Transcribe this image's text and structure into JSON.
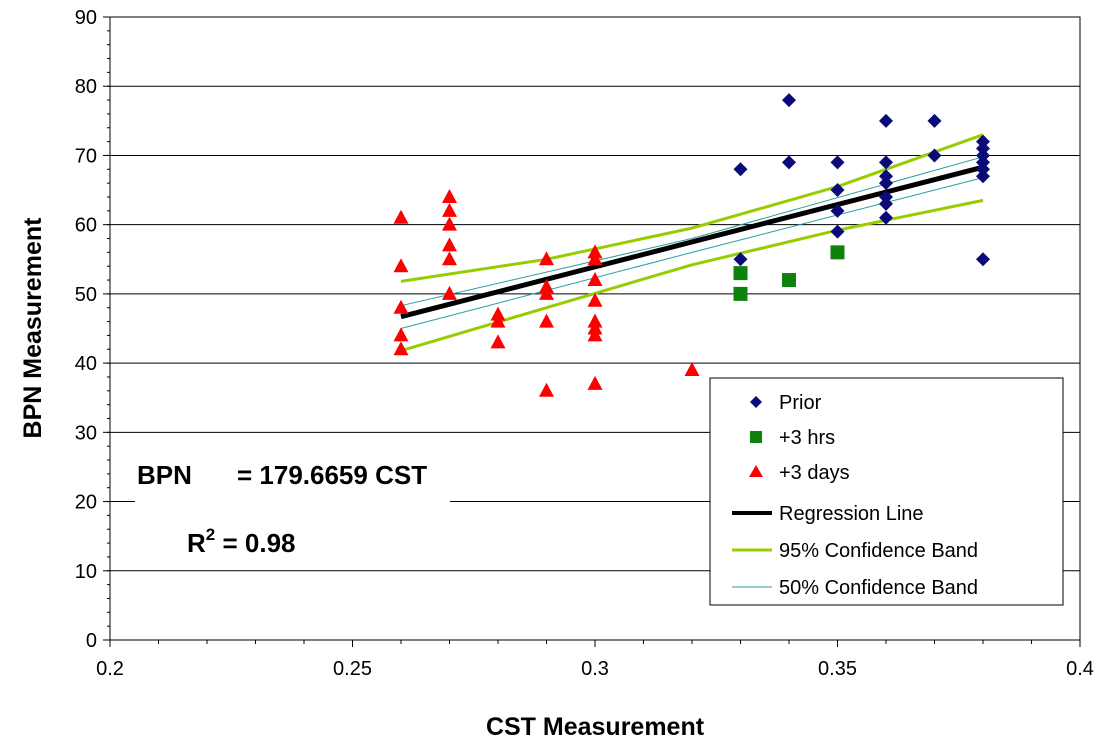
{
  "chart_data": {
    "type": "scatter",
    "xlabel": "CST Measurement",
    "ylabel": "BPN Measurement",
    "xlim": [
      0.2,
      0.4
    ],
    "ylim": [
      0,
      90
    ],
    "x_ticks": [
      "0.2",
      "0.25",
      "0.3",
      "0.35",
      "0.4"
    ],
    "y_ticks": [
      "0",
      "10",
      "20",
      "30",
      "40",
      "50",
      "60",
      "70",
      "80",
      "90"
    ],
    "grid": "horizontal",
    "legend_position": "bottom-right",
    "series": [
      {
        "name": "Prior",
        "marker": "diamond",
        "color": "#0a0a78",
        "points": [
          [
            0.33,
            68
          ],
          [
            0.33,
            55
          ],
          [
            0.34,
            78
          ],
          [
            0.34,
            69
          ],
          [
            0.35,
            69
          ],
          [
            0.35,
            65
          ],
          [
            0.35,
            62
          ],
          [
            0.35,
            59
          ],
          [
            0.36,
            75
          ],
          [
            0.36,
            69
          ],
          [
            0.36,
            67
          ],
          [
            0.36,
            66
          ],
          [
            0.36,
            64
          ],
          [
            0.36,
            63
          ],
          [
            0.36,
            61
          ],
          [
            0.37,
            75
          ],
          [
            0.37,
            70
          ],
          [
            0.38,
            72
          ],
          [
            0.38,
            71
          ],
          [
            0.38,
            70
          ],
          [
            0.38,
            69
          ],
          [
            0.38,
            68
          ],
          [
            0.38,
            67
          ],
          [
            0.38,
            55
          ]
        ]
      },
      {
        "name": "+3 hrs",
        "marker": "square",
        "color": "#0d820d",
        "points": [
          [
            0.33,
            53
          ],
          [
            0.33,
            50
          ],
          [
            0.34,
            52
          ],
          [
            0.35,
            56
          ]
        ]
      },
      {
        "name": "+3 days",
        "marker": "triangle",
        "color": "#ff0000",
        "points": [
          [
            0.26,
            61
          ],
          [
            0.26,
            54
          ],
          [
            0.26,
            48
          ],
          [
            0.26,
            44
          ],
          [
            0.26,
            42
          ],
          [
            0.27,
            64
          ],
          [
            0.27,
            62
          ],
          [
            0.27,
            60
          ],
          [
            0.27,
            57
          ],
          [
            0.27,
            55
          ],
          [
            0.27,
            50
          ],
          [
            0.28,
            47
          ],
          [
            0.28,
            46
          ],
          [
            0.28,
            43
          ],
          [
            0.29,
            55
          ],
          [
            0.29,
            51
          ],
          [
            0.29,
            50
          ],
          [
            0.29,
            46
          ],
          [
            0.29,
            36
          ],
          [
            0.3,
            56
          ],
          [
            0.3,
            55
          ],
          [
            0.3,
            52
          ],
          [
            0.3,
            49
          ],
          [
            0.3,
            46
          ],
          [
            0.3,
            45
          ],
          [
            0.3,
            44
          ],
          [
            0.3,
            37
          ],
          [
            0.32,
            39
          ]
        ]
      },
      {
        "name": "Regression Line",
        "line": true,
        "color": "#000000",
        "width": 5,
        "points": [
          [
            0.26,
            46.7
          ],
          [
            0.38,
            68.3
          ]
        ]
      },
      {
        "name": "95% Confidence Band",
        "line": true,
        "color": "#99cc00",
        "width": 3,
        "upper": [
          [
            0.26,
            51.8
          ],
          [
            0.29,
            55.0
          ],
          [
            0.32,
            59.5
          ],
          [
            0.35,
            65.5
          ],
          [
            0.38,
            73.0
          ]
        ],
        "lower": [
          [
            0.26,
            41.8
          ],
          [
            0.29,
            48.0
          ],
          [
            0.32,
            54.2
          ],
          [
            0.35,
            59.2
          ],
          [
            0.38,
            63.5
          ]
        ]
      },
      {
        "name": "50% Confidence Band",
        "line": true,
        "color": "#2a9d9d",
        "width": 1,
        "upper": [
          [
            0.26,
            48.3
          ],
          [
            0.32,
            58.0
          ],
          [
            0.38,
            69.8
          ]
        ],
        "lower": [
          [
            0.26,
            45.0
          ],
          [
            0.32,
            56.0
          ],
          [
            0.38,
            66.8
          ]
        ]
      }
    ],
    "annotations": {
      "equation_label": "BPN",
      "equation_value": "= 179.6659 CST",
      "r2_prefix": "R",
      "r2_sup": "2",
      "r2_value": " = 0.98"
    }
  }
}
